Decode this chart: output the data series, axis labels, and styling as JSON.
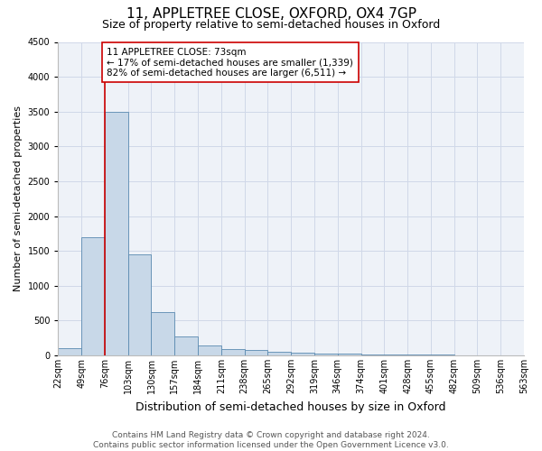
{
  "title1": "11, APPLETREE CLOSE, OXFORD, OX4 7GP",
  "title2": "Size of property relative to semi-detached houses in Oxford",
  "xlabel": "Distribution of semi-detached houses by size in Oxford",
  "ylabel": "Number of semi-detached properties",
  "bar_values": [
    110,
    1700,
    3500,
    1450,
    620,
    270,
    145,
    90,
    75,
    55,
    40,
    30,
    20,
    15,
    12,
    10,
    8,
    6,
    5,
    4
  ],
  "categories": [
    "22sqm",
    "49sqm",
    "76sqm",
    "103sqm",
    "130sqm",
    "157sqm",
    "184sqm",
    "211sqm",
    "238sqm",
    "265sqm",
    "292sqm",
    "319sqm",
    "346sqm",
    "374sqm",
    "401sqm",
    "428sqm",
    "455sqm",
    "482sqm",
    "509sqm",
    "536sqm",
    "563sqm"
  ],
  "bar_color": "#c8d8e8",
  "bar_edge_color": "#5a8ab0",
  "grid_color": "#d0d8e8",
  "background_color": "#eef2f8",
  "annotation_box_color": "#ffffff",
  "annotation_border_color": "#cc0000",
  "property_line_color": "#cc0000",
  "annotation_title": "11 APPLETREE CLOSE: 73sqm",
  "annotation_line1": "← 17% of semi-detached houses are smaller (1,339)",
  "annotation_line2": "82% of semi-detached houses are larger (6,511) →",
  "ylim": [
    0,
    4500
  ],
  "yticks": [
    0,
    500,
    1000,
    1500,
    2000,
    2500,
    3000,
    3500,
    4000,
    4500
  ],
  "footer1": "Contains HM Land Registry data © Crown copyright and database right 2024.",
  "footer2": "Contains public sector information licensed under the Open Government Licence v3.0.",
  "title1_fontsize": 11,
  "title2_fontsize": 9,
  "annotation_fontsize": 7.5,
  "tick_fontsize": 7,
  "ylabel_fontsize": 8,
  "xlabel_fontsize": 9,
  "footer_fontsize": 6.5
}
